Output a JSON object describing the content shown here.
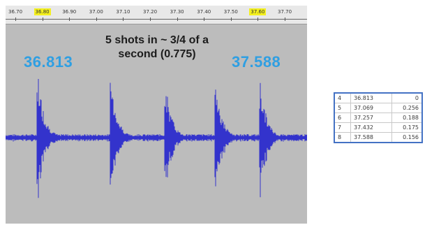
{
  "timeline": {
    "ticks": [
      {
        "label": "36.70",
        "highlight": false
      },
      {
        "label": "36.80",
        "highlight": true
      },
      {
        "label": "36.90",
        "highlight": false
      },
      {
        "label": "37.00",
        "highlight": false
      },
      {
        "label": "37.10",
        "highlight": false
      },
      {
        "label": "37.20",
        "highlight": false
      },
      {
        "label": "37.30",
        "highlight": false
      },
      {
        "label": "37.40",
        "highlight": false
      },
      {
        "label": "37.50",
        "highlight": false
      },
      {
        "label": "37.60",
        "highlight": true
      },
      {
        "label": "37.70",
        "highlight": false
      }
    ]
  },
  "overlay": {
    "caption": "5 shots in ~ 3/4 of a\nsecond (0.775)",
    "start_time": "36.813",
    "end_time": "37.588"
  },
  "colors": {
    "waveform": "#3333cc",
    "time_text": "#2f9fe2",
    "highlight": "#f4f01e",
    "table_border": "#4472c4"
  },
  "table": {
    "rows": [
      {
        "idx": "4",
        "time": "36.813",
        "delta": "0"
      },
      {
        "idx": "5",
        "time": "37.069",
        "delta": "0.256"
      },
      {
        "idx": "6",
        "time": "37.257",
        "delta": "0.188"
      },
      {
        "idx": "7",
        "time": "37.432",
        "delta": "0.175"
      },
      {
        "idx": "8",
        "time": "37.588",
        "delta": "0.156"
      }
    ]
  }
}
